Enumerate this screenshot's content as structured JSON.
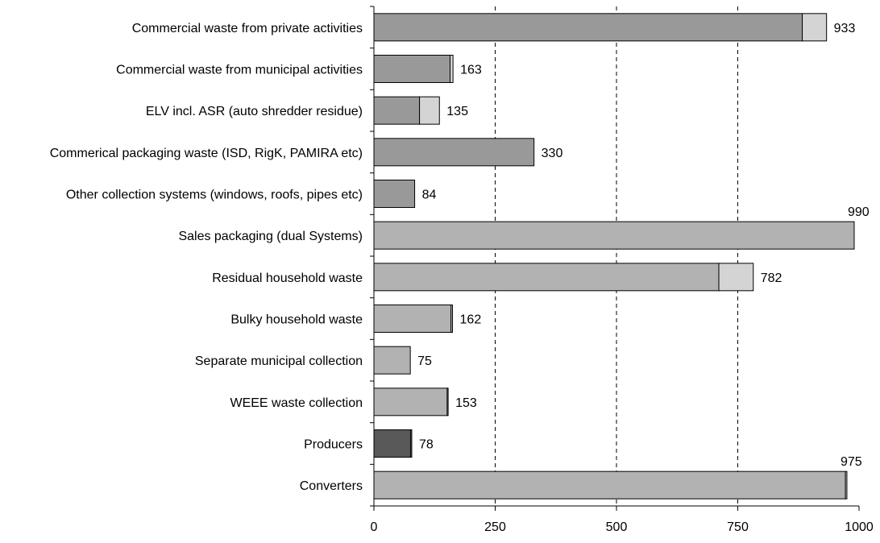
{
  "chart_data": {
    "type": "bar",
    "orientation": "horizontal",
    "stacked": true,
    "title": "",
    "xlabel": "",
    "ylabel": "",
    "xlim": [
      0,
      1000
    ],
    "xticks": [
      0,
      250,
      500,
      750,
      1000
    ],
    "grid": "vertical dashed at 250, 500, 750",
    "legend": "none",
    "categories": [
      "Commercial waste from private activities",
      "Commercial waste from municipal activities",
      "ELV incl. ASR (auto shredder residue)",
      "Commerical packaging waste (ISD, RigK, PAMIRA etc)",
      "Other collection systems (windows, roofs, pipes etc)",
      "Sales packaging (dual Systems)",
      "Residual household waste",
      "Bulky household waste",
      "Separate municipal collection",
      "WEEE waste collection",
      "Producers",
      "Converters"
    ],
    "segment1": [
      883,
      157,
      94,
      330,
      84,
      990,
      711,
      159,
      75,
      151,
      76,
      972
    ],
    "segment2": [
      50,
      6,
      41,
      0,
      0,
      0,
      71,
      3,
      0,
      2,
      2,
      3
    ],
    "totals": [
      "933",
      "163",
      "135",
      "330",
      "84",
      "990",
      "782",
      "162",
      "75",
      "153",
      "78",
      "975"
    ],
    "colors": {
      "commercial": "#999999",
      "household": "#b2b2b2",
      "producers": "#595959",
      "secondary": "#d4d4d4",
      "border": "#000000",
      "grid": "#000000"
    },
    "color_groups": [
      "commercial",
      "commercial",
      "commercial",
      "commercial",
      "commercial",
      "household",
      "household",
      "household",
      "household",
      "household",
      "producers",
      "household"
    ]
  }
}
